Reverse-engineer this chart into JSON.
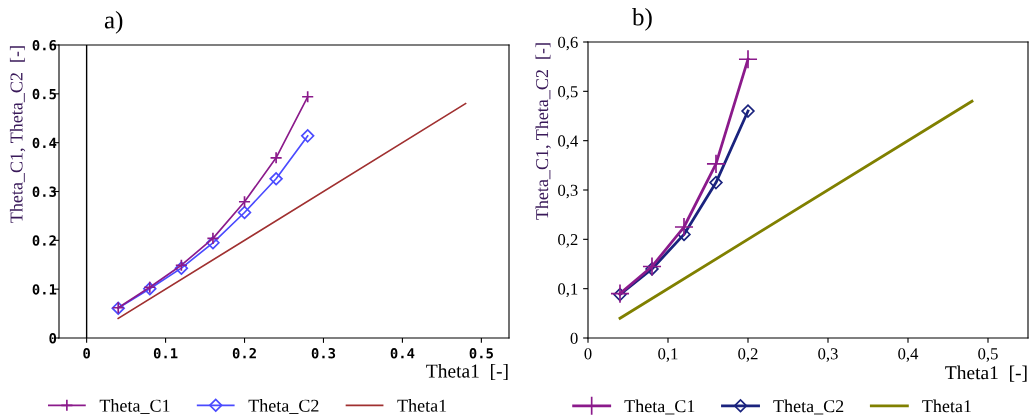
{
  "chart_data": [
    {
      "type": "line",
      "title": "a)",
      "xlabel": "Theta1  [-]",
      "ylabel": "Theta_C1, Theta_C2  [-]",
      "xlim": [
        -0.035,
        0.535
      ],
      "xticks": [
        0,
        0.1,
        0.2,
        0.3,
        0.4,
        0.5
      ],
      "ylim": [
        0,
        0.6
      ],
      "yticks": [
        0,
        0.1,
        0.2,
        0.3,
        0.4,
        0.5,
        0.6
      ],
      "grid": false,
      "legend": "bottom",
      "ref_lines": [
        {
          "axis": "x",
          "value": 0,
          "color": "#000000"
        }
      ],
      "series": [
        {
          "name": "Theta_C1",
          "color": "#8b1a8b",
          "marker": "cross",
          "x": [
            0.04,
            0.08,
            0.12,
            0.16,
            0.2,
            0.24,
            0.28
          ],
          "values": [
            0.062,
            0.104,
            0.149,
            0.204,
            0.279,
            0.369,
            0.494
          ]
        },
        {
          "name": "Theta_C2",
          "color": "#4a4aff",
          "marker": "diamond",
          "x": [
            0.04,
            0.08,
            0.12,
            0.16,
            0.2,
            0.24,
            0.28
          ],
          "values": [
            0.061,
            0.101,
            0.143,
            0.195,
            0.257,
            0.326,
            0.414
          ]
        },
        {
          "name": "Theta1",
          "color": "#a03030",
          "marker": "none",
          "x": [
            0.04,
            0.48
          ],
          "values": [
            0.04,
            0.48
          ]
        }
      ]
    },
    {
      "type": "line",
      "title": "b)",
      "xlabel": "Theta1  [-]",
      "ylabel": "Theta_C1, Theta_C2  [-]",
      "xlim": [
        0,
        0.55
      ],
      "xticks": [
        0,
        {
          "value": 0.1,
          "label": "0,1"
        },
        {
          "value": 0.2,
          "label": "0,2"
        },
        {
          "value": 0.3,
          "label": "0,3"
        },
        {
          "value": 0.4,
          "label": "0,4"
        },
        {
          "value": 0.5,
          "label": "0,5"
        }
      ],
      "ylim": [
        0,
        0.6
      ],
      "yticks": [
        0,
        {
          "value": 0.1,
          "label": "0,1"
        },
        {
          "value": 0.2,
          "label": "0,2"
        },
        {
          "value": 0.3,
          "label": "0,3"
        },
        {
          "value": 0.4,
          "label": "0,4"
        },
        {
          "value": 0.5,
          "label": "0,5"
        },
        {
          "value": 0.6,
          "label": "0,6"
        }
      ],
      "grid": false,
      "legend": "bottom",
      "series": [
        {
          "name": "Theta_C1",
          "color": "#8b1a8b",
          "marker": "cross",
          "x": [
            0.04,
            0.08,
            0.12,
            0.16,
            0.2
          ],
          "values": [
            0.09,
            0.145,
            0.225,
            0.353,
            0.565
          ]
        },
        {
          "name": "Theta_C2",
          "color": "#1a237e",
          "marker": "diamond",
          "x": [
            0.04,
            0.08,
            0.12,
            0.16,
            0.2
          ],
          "values": [
            0.088,
            0.14,
            0.21,
            0.315,
            0.46
          ]
        },
        {
          "name": "Theta1",
          "color": "#808000",
          "marker": "none",
          "x": [
            0.04,
            0.48
          ],
          "values": [
            0.04,
            0.48
          ]
        }
      ]
    }
  ]
}
